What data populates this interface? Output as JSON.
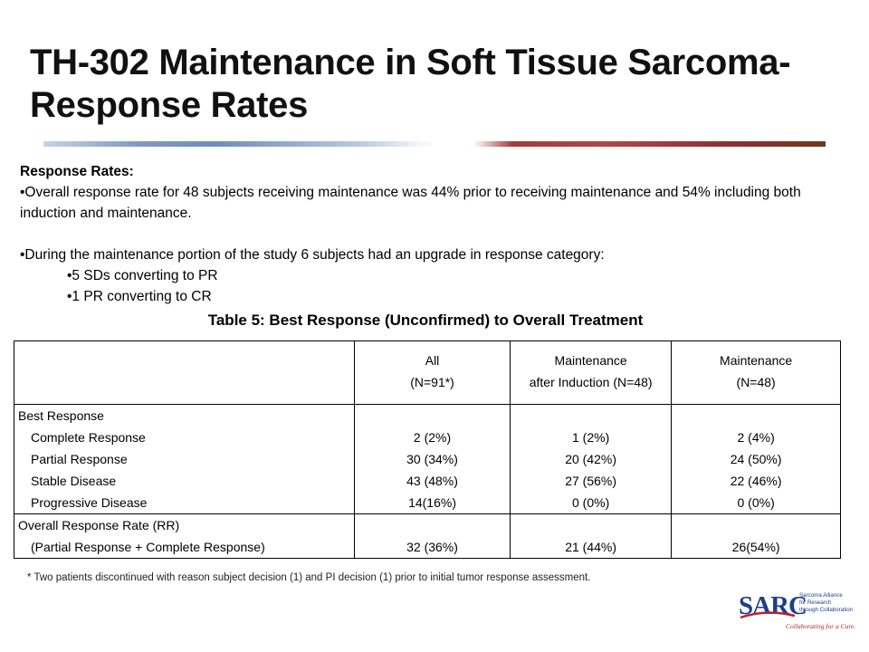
{
  "title": {
    "line1": "TH-302 Maintenance in Soft Tissue Sarcoma-",
    "line2": "Response Rates"
  },
  "response_rates": {
    "heading": "Response Rates:",
    "bullet1": "•Overall response rate for 48 subjects receiving maintenance was 44% prior to receiving maintenance and 54% including both induction and maintenance.",
    "bullet2": "•During the maintenance portion of the study 6 subjects had an upgrade in response category:",
    "sub1": "•5 SDs converting to PR",
    "sub2": "•1 PR converting to CR"
  },
  "table": {
    "title": "Table 5: Best Response (Unconfirmed) to Overall Treatment",
    "columns": [
      {
        "line1": "",
        "line2": ""
      },
      {
        "line1": "All",
        "line2": "(N=91*)"
      },
      {
        "line1": "Maintenance",
        "line2": "after Induction (N=48)"
      },
      {
        "line1": "Maintenance",
        "line2": "(N=48)"
      }
    ],
    "best_response": {
      "header": "Best Response",
      "rows": [
        {
          "label": "Complete Response",
          "all": "2 (2%)",
          "maint_after_induction": "1 (2%)",
          "maint": "2 (4%)"
        },
        {
          "label": "Partial Response",
          "all": "30 (34%)",
          "maint_after_induction": "20 (42%)",
          "maint": "24 (50%)"
        },
        {
          "label": "Stable Disease",
          "all": "43 (48%)",
          "maint_after_induction": "27 (56%)",
          "maint": "22 (46%)"
        },
        {
          "label": "Progressive Disease",
          "all": "14(16%)",
          "maint_after_induction": "0 (0%)",
          "maint": "0 (0%)"
        }
      ]
    },
    "overall": {
      "label": "Overall Response Rate (RR)",
      "sublabel": "(Partial Response  + Complete Response)",
      "all": "32 (36%)",
      "maint_after_induction": "21 (44%)",
      "maint": "26(54%)"
    }
  },
  "footnote": "* Two patients discontinued with reason subject decision (1) and PI decision (1) prior to initial tumor response assessment.",
  "logo": {
    "mark": "SARC",
    "line1": "Sarcoma Alliance",
    "line2": "for Research",
    "line3": "through Collaboration",
    "tagline": "Collaborating for a Cure."
  },
  "colors": {
    "logo_blue": "#1f3f8a",
    "logo_red": "#b3282d",
    "bar_blue": "#6e8db9",
    "bar_red": "#a53a3a"
  }
}
